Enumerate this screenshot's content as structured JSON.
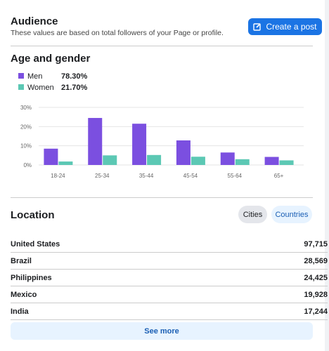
{
  "header": {
    "title": "Audience",
    "subtitle": "These values are based on total followers of your Page or profile.",
    "button": "Create a post"
  },
  "chart_data": {
    "type": "bar",
    "title": "Age and gender",
    "categories": [
      "18-24",
      "25-34",
      "35-44",
      "45-54",
      "55-64",
      "65+"
    ],
    "series": [
      {
        "name": "Men",
        "share": "78.30%",
        "color": "#7b4fe0",
        "values": [
          8.5,
          24.5,
          21.5,
          12.8,
          6.5,
          4.2
        ]
      },
      {
        "name": "Women",
        "share": "21.70%",
        "color": "#5cc8b4",
        "values": [
          1.8,
          5.0,
          5.2,
          4.3,
          3.0,
          2.4
        ]
      }
    ],
    "ylim": [
      0,
      30
    ],
    "yticks": [
      {
        "value": 0,
        "label": "0%"
      },
      {
        "value": 10,
        "label": "10%"
      },
      {
        "value": 20,
        "label": "20%"
      },
      {
        "value": 30,
        "label": "30%"
      }
    ],
    "grid": true
  },
  "location": {
    "title": "Location",
    "tabs": [
      "Cities",
      "Countries"
    ],
    "rows": [
      [
        "United States",
        "97,715"
      ],
      [
        "Brazil",
        "28,569"
      ],
      [
        "Philippines",
        "24,425"
      ],
      [
        "Mexico",
        "19,928"
      ],
      [
        "India",
        "17,244"
      ]
    ],
    "more": "See more"
  }
}
